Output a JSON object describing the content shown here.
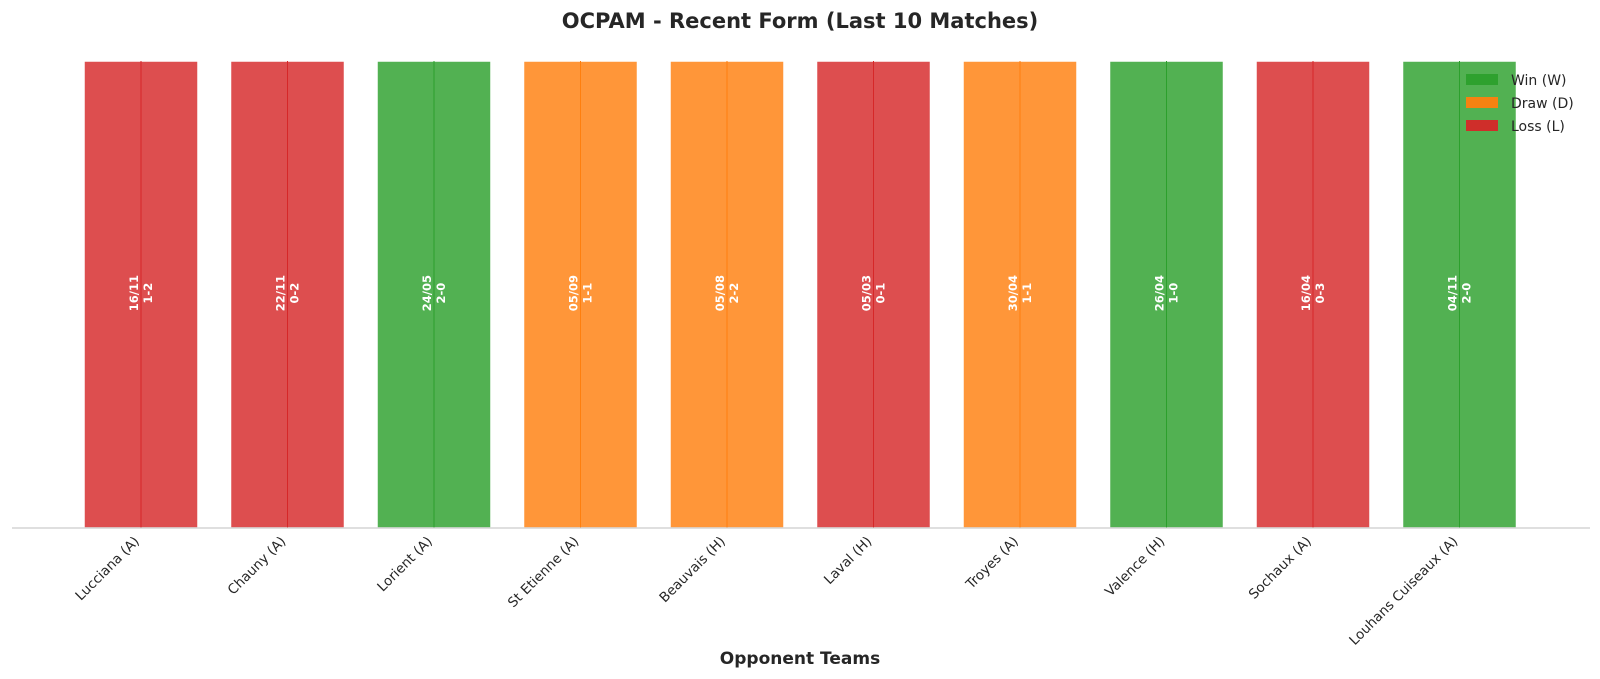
{
  "colors": {
    "win": "#2ca02c",
    "draw": "#ff7f0e",
    "loss": "#d62728",
    "axis": "#cccccc"
  },
  "chart_data": {
    "type": "bar",
    "title": "OCPAM - Recent Form (Last 10 Matches)",
    "xlabel": "Opponent Teams",
    "ylabel": "",
    "grid": false,
    "legend_position": "top-right",
    "legend": [
      {
        "key": "W",
        "label": "Win (W)"
      },
      {
        "key": "D",
        "label": "Draw (D)"
      },
      {
        "key": "L",
        "label": "Loss (L)"
      }
    ],
    "categories": [
      "Lucciana (A)",
      "Chauny (A)",
      "Lorient (A)",
      "St Etienne (A)",
      "Beauvais (H)",
      "Laval (H)",
      "Troyes (A)",
      "Valence (H)",
      "Sochaux (A)",
      "Louhans Cuiseaux (A)"
    ],
    "values": [
      1,
      1,
      1,
      1,
      1,
      1,
      1,
      1,
      1,
      1
    ],
    "results": [
      "L",
      "L",
      "W",
      "D",
      "D",
      "L",
      "D",
      "W",
      "L",
      "W"
    ],
    "dates": [
      "16/11",
      "22/11",
      "24/05",
      "05/09",
      "05/08",
      "05/03",
      "30/04",
      "26/04",
      "16/04",
      "04/11"
    ],
    "scores": [
      "1-2",
      "0-2",
      "2-0",
      "1-1",
      "2-2",
      "0-1",
      "1-1",
      "1-0",
      "0-3",
      "2-0"
    ]
  }
}
